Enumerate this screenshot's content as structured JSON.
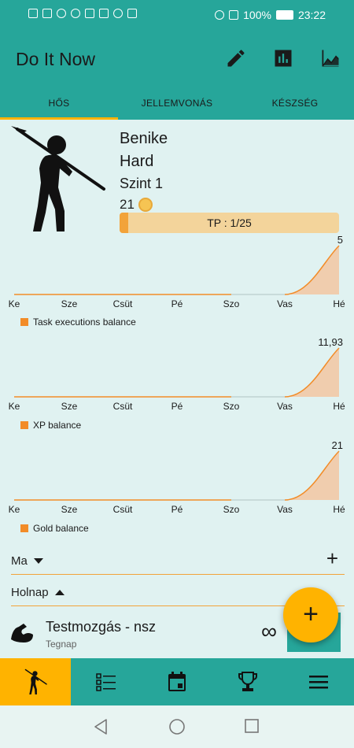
{
  "status_bar": {
    "battery": "100%",
    "time": "23:22"
  },
  "app": {
    "title": "Do It Now"
  },
  "appbar_icons": [
    "edit-icon",
    "bar-chart-icon",
    "line-chart-icon"
  ],
  "tabs": [
    {
      "label": "HŐS",
      "active": true
    },
    {
      "label": "JELLEMVONÁS",
      "active": false
    },
    {
      "label": "KÉSZSÉG",
      "active": false
    }
  ],
  "hero": {
    "name": "Benike",
    "difficulty": "Hard",
    "level": "Szint 1",
    "gold": "21",
    "tp_label": "TP : 1/25",
    "tp_fraction": 0.04
  },
  "chart_data": [
    {
      "type": "area",
      "categories": [
        "Ke",
        "Sze",
        "Csüt",
        "Pé",
        "Szo",
        "Vas",
        "Hé"
      ],
      "series": [
        {
          "name": "Task executions balance",
          "values": [
            0,
            0,
            0,
            0,
            0,
            0,
            5
          ]
        }
      ],
      "max_label": "5",
      "ylim": [
        0,
        5
      ]
    },
    {
      "type": "area",
      "categories": [
        "Ke",
        "Sze",
        "Csüt",
        "Pé",
        "Szo",
        "Vas",
        "Hé"
      ],
      "series": [
        {
          "name": "XP balance",
          "values": [
            0,
            0,
            0,
            0,
            0,
            0,
            11.93
          ]
        }
      ],
      "max_label": "11,93",
      "ylim": [
        0,
        11.93
      ]
    },
    {
      "type": "area",
      "categories": [
        "Ke",
        "Sze",
        "Csüt",
        "Pé",
        "Szo",
        "Vas",
        "Hé"
      ],
      "series": [
        {
          "name": "Gold balance",
          "values": [
            0,
            0,
            0,
            0,
            0,
            0,
            21
          ]
        }
      ],
      "max_label": "21",
      "ylim": [
        0,
        21
      ]
    }
  ],
  "colors": {
    "accent": "#26a69a",
    "amber": "#ffb300",
    "orange": "#f28c28",
    "background": "#e0f2f1"
  },
  "sections": {
    "today": {
      "label": "Ma"
    },
    "tomorrow": {
      "label": "Holnap"
    }
  },
  "task": {
    "title": "Testmozgás - nsz",
    "subtitle": "Tegnap",
    "repeat": "∞"
  },
  "fab": {
    "label": "+"
  },
  "bottom_nav": [
    "hero-icon",
    "list-icon",
    "calendar-icon",
    "trophy-icon",
    "menu-icon"
  ]
}
